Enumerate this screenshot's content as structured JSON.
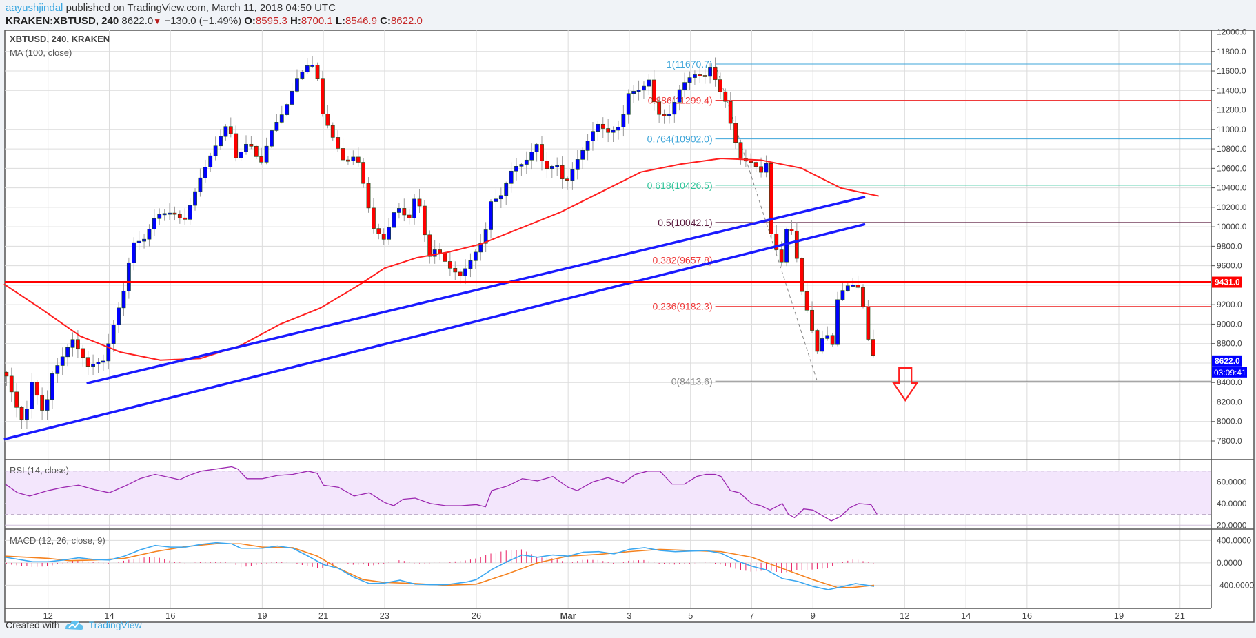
{
  "header": {
    "author": "aayushjindal",
    "published": "published on TradingView.com, March 11, 2018 04:50 UTC",
    "symbol": "KRAKEN:XBTUSD, 240",
    "last": "8622.0",
    "change": "−130.0 (−1.49%)",
    "o_label": "O:",
    "o": "8595.3",
    "h_label": "H:",
    "h": "8700.1",
    "l_label": "L:",
    "l": "8546.9",
    "c_label": "C:",
    "c": "8622.0"
  },
  "legend": {
    "title": "XBTUSD, 240, KRAKEN",
    "ma": "MA (100, close)",
    "rsi": "RSI (14, close)",
    "macd": "MACD (12, 26, close, 9)"
  },
  "footer": {
    "created": "Created with",
    "brand": "TradingView"
  },
  "colors": {
    "up": "#0000ff",
    "down": "#ff0000",
    "ma": "#ff1f1f",
    "trend": "#1a1aff",
    "rsi": "#9c27b0",
    "macd": "#3ba7f0",
    "signal": "#f5821f",
    "hist": "#e91e63"
  },
  "chart_data": {
    "type": "candlestick",
    "x_unit": "days since Feb 12, 2018 00:00 UTC",
    "bar_step_days": 0.16667,
    "price_axis": {
      "ylim": [
        7600,
        12100
      ],
      "ticks": [
        "12000.0",
        "11800.0",
        "11600.0",
        "11400.0",
        "11200.0",
        "11000.0",
        "10800.0",
        "10600.0",
        "10400.0",
        "10200.0",
        "10000.0",
        "9800.0",
        "9600.0",
        "9200.0",
        "9000.0",
        "8800.0",
        "8400.0",
        "8200.0",
        "8000.0",
        "7800.0"
      ]
    },
    "date_ticks": [
      {
        "d": 0,
        "label": "12"
      },
      {
        "d": 2,
        "label": "14"
      },
      {
        "d": 4,
        "label": "16"
      },
      {
        "d": 7,
        "label": "19"
      },
      {
        "d": 9,
        "label": "21"
      },
      {
        "d": 11,
        "label": "23"
      },
      {
        "d": 14,
        "label": "26"
      },
      {
        "d": 17,
        "label": "Mar"
      },
      {
        "d": 19,
        "label": "3"
      },
      {
        "d": 21,
        "label": "5"
      },
      {
        "d": 23,
        "label": "7"
      },
      {
        "d": 25,
        "label": "9"
      },
      {
        "d": 28,
        "label": "12"
      },
      {
        "d": 30,
        "label": "14"
      },
      {
        "d": 32,
        "label": "16"
      },
      {
        "d": 35,
        "label": "19"
      },
      {
        "d": 37,
        "label": "21"
      }
    ],
    "close_path": [
      [
        -1.36,
        8466
      ],
      [
        -1.05,
        8137
      ],
      [
        -0.79,
        7932
      ],
      [
        -0.52,
        8384
      ],
      [
        -0.13,
        8055
      ],
      [
        0.13,
        8507
      ],
      [
        0.79,
        8877
      ],
      [
        1.31,
        8548
      ],
      [
        1.83,
        8589
      ],
      [
        2.09,
        8918
      ],
      [
        2.49,
        9370
      ],
      [
        2.75,
        9863
      ],
      [
        3.14,
        9904
      ],
      [
        3.53,
        10126
      ],
      [
        4.06,
        10110
      ],
      [
        4.45,
        10027
      ],
      [
        4.98,
        10521
      ],
      [
        5.37,
        10808
      ],
      [
        5.89,
        11096
      ],
      [
        6.15,
        10685
      ],
      [
        6.55,
        10849
      ],
      [
        6.94,
        10603
      ],
      [
        7.33,
        11014
      ],
      [
        7.72,
        11219
      ],
      [
        8.12,
        11548
      ],
      [
        8.51,
        11671
      ],
      [
        8.77,
        11630
      ],
      [
        8.9,
        11178
      ],
      [
        9.3,
        10890
      ],
      [
        9.69,
        10644
      ],
      [
        10.08,
        10767
      ],
      [
        10.34,
        10438
      ],
      [
        10.6,
        10027
      ],
      [
        11.0,
        9863
      ],
      [
        11.39,
        10192
      ],
      [
        11.78,
        10027
      ],
      [
        12.05,
        10356
      ],
      [
        12.44,
        9699
      ],
      [
        12.7,
        9822
      ],
      [
        13.09,
        9616
      ],
      [
        13.49,
        9493
      ],
      [
        13.88,
        9657
      ],
      [
        14.27,
        9863
      ],
      [
        14.45,
        10233
      ],
      [
        14.79,
        10315
      ],
      [
        15.19,
        10644
      ],
      [
        15.58,
        10685
      ],
      [
        15.97,
        10849
      ],
      [
        16.23,
        10562
      ],
      [
        16.63,
        10603
      ],
      [
        16.89,
        10397
      ],
      [
        17.28,
        10685
      ],
      [
        17.67,
        10931
      ],
      [
        17.94,
        11096
      ],
      [
        18.33,
        10972
      ],
      [
        18.72,
        11014
      ],
      [
        18.98,
        11342
      ],
      [
        19.38,
        11383
      ],
      [
        19.64,
        11507
      ],
      [
        19.9,
        11178
      ],
      [
        20.29,
        11178
      ],
      [
        20.69,
        11466
      ],
      [
        21.08,
        11548
      ],
      [
        21.47,
        11507
      ],
      [
        21.68,
        11630
      ],
      [
        21.86,
        11425
      ],
      [
        22.13,
        11301
      ],
      [
        22.39,
        10972
      ],
      [
        22.65,
        10726
      ],
      [
        23.04,
        10685
      ],
      [
        23.3,
        10562
      ],
      [
        23.57,
        10685
      ],
      [
        23.64,
        9904
      ],
      [
        23.96,
        9575
      ],
      [
        24.14,
        9945
      ],
      [
        24.35,
        9929
      ],
      [
        24.61,
        9370
      ],
      [
        24.88,
        9082
      ],
      [
        25.14,
        8754
      ],
      [
        25.4,
        8959
      ],
      [
        25.66,
        8795
      ],
      [
        25.79,
        9247
      ],
      [
        26.05,
        9370
      ],
      [
        26.45,
        9370
      ],
      [
        26.66,
        9123
      ],
      [
        26.84,
        8754
      ],
      [
        27.05,
        8622
      ]
    ],
    "ma100": [
      [
        -1.44,
        9411
      ],
      [
        -0.26,
        9165
      ],
      [
        1.05,
        8877
      ],
      [
        2.36,
        8713
      ],
      [
        3.67,
        8630
      ],
      [
        4.98,
        8647
      ],
      [
        6.28,
        8778
      ],
      [
        7.59,
        9000
      ],
      [
        8.9,
        9165
      ],
      [
        10.21,
        9411
      ],
      [
        11.0,
        9575
      ],
      [
        12.05,
        9682
      ],
      [
        13.09,
        9740
      ],
      [
        14.14,
        9822
      ],
      [
        15.45,
        9986
      ],
      [
        16.76,
        10151
      ],
      [
        18.07,
        10356
      ],
      [
        19.38,
        10562
      ],
      [
        20.69,
        10644
      ],
      [
        22.0,
        10701
      ],
      [
        23.3,
        10685
      ],
      [
        24.61,
        10603
      ],
      [
        25.92,
        10397
      ],
      [
        27.15,
        10315
      ]
    ],
    "trendlines": [
      {
        "from": [
          1.26,
          8392
        ],
        "to": [
          26.71,
          10307
        ]
      },
      {
        "from": [
          -1.44,
          7817
        ],
        "to": [
          26.71,
          10027
        ]
      }
    ],
    "horizontal_level": {
      "price": 9431.0,
      "label": "9431.0"
    },
    "last_price": {
      "label": "8622.0",
      "price": 8622.0,
      "countdown": "03:09:41"
    },
    "fib": {
      "start_d": 21.81,
      "swing": {
        "from": [
          21.81,
          11670.7
        ],
        "to": [
          25.14,
          8413.6
        ]
      },
      "levels": [
        {
          "label": "1(11670.7)",
          "price": 11670.7,
          "color": "#3da5d9"
        },
        {
          "label": "0.886(11299.4)",
          "price": 11299.4,
          "color": "#ef3b3b"
        },
        {
          "label": "0.764(10902.0)",
          "price": 10902.0,
          "color": "#3da5d9"
        },
        {
          "label": "0.618(10426.5)",
          "price": 10426.5,
          "color": "#2fc59a"
        },
        {
          "label": "0.5(10042.1)",
          "price": 10042.1,
          "color": "#5a1a3e"
        },
        {
          "label": "0.382(9657.8)",
          "price": 9657.8,
          "color": "#ef3b3b"
        },
        {
          "label": "0.236(9182.3)",
          "price": 9182.3,
          "color": "#ef3b3b"
        },
        {
          "label": "0(8413.6)",
          "price": 8413.6,
          "color": "#888888"
        }
      ]
    },
    "arrow": {
      "d": 28.02,
      "direction": "down"
    },
    "rsi": {
      "ticks": [
        "60.0000",
        "40.0000",
        "20.0000"
      ],
      "tick_values": [
        60,
        40,
        20
      ],
      "bands": [
        30,
        70
      ],
      "path": [
        [
          -1.4,
          58
        ],
        [
          -1.0,
          50
        ],
        [
          -0.6,
          47
        ],
        [
          0,
          52
        ],
        [
          0.5,
          55
        ],
        [
          1.0,
          57
        ],
        [
          1.5,
          53
        ],
        [
          2.0,
          50
        ],
        [
          2.5,
          56
        ],
        [
          3.0,
          63
        ],
        [
          3.5,
          67
        ],
        [
          4.0,
          64
        ],
        [
          4.3,
          62
        ],
        [
          4.6,
          66
        ],
        [
          5.0,
          70
        ],
        [
          5.5,
          72
        ],
        [
          6.0,
          74
        ],
        [
          6.2,
          72
        ],
        [
          6.5,
          63
        ],
        [
          7.0,
          63
        ],
        [
          7.5,
          66
        ],
        [
          8.0,
          67
        ],
        [
          8.5,
          70
        ],
        [
          8.8,
          68
        ],
        [
          9.0,
          57
        ],
        [
          9.5,
          55
        ],
        [
          10.0,
          47
        ],
        [
          10.5,
          50
        ],
        [
          11.0,
          41
        ],
        [
          11.3,
          38
        ],
        [
          11.6,
          44
        ],
        [
          12.0,
          45
        ],
        [
          12.5,
          40
        ],
        [
          13.0,
          38
        ],
        [
          13.5,
          38
        ],
        [
          14.0,
          39
        ],
        [
          14.3,
          37
        ],
        [
          14.5,
          52
        ],
        [
          15.0,
          56
        ],
        [
          15.5,
          63
        ],
        [
          16.0,
          61
        ],
        [
          16.5,
          65
        ],
        [
          17.0,
          55
        ],
        [
          17.3,
          52
        ],
        [
          17.8,
          60
        ],
        [
          18.3,
          64
        ],
        [
          18.8,
          59
        ],
        [
          19.2,
          67
        ],
        [
          19.6,
          70
        ],
        [
          20.0,
          70
        ],
        [
          20.4,
          58
        ],
        [
          20.8,
          58
        ],
        [
          21.2,
          65
        ],
        [
          21.5,
          67
        ],
        [
          21.8,
          67
        ],
        [
          22.0,
          65
        ],
        [
          22.3,
          52
        ],
        [
          22.6,
          50
        ],
        [
          23.0,
          40
        ],
        [
          23.3,
          38
        ],
        [
          23.6,
          34
        ],
        [
          24.0,
          40
        ],
        [
          24.2,
          30
        ],
        [
          24.4,
          27
        ],
        [
          24.7,
          35
        ],
        [
          25.0,
          34
        ],
        [
          25.3,
          29
        ],
        [
          25.6,
          24
        ],
        [
          25.9,
          28
        ],
        [
          26.2,
          36
        ],
        [
          26.5,
          40
        ],
        [
          26.9,
          39
        ],
        [
          27.1,
          30
        ]
      ]
    },
    "macd": {
      "ticks": [
        "400.0000",
        "0.0000",
        "-400.0000"
      ],
      "tick_values": [
        400,
        0,
        -400
      ],
      "macd": [
        [
          -1.4,
          100
        ],
        [
          -0.5,
          20
        ],
        [
          0,
          20
        ],
        [
          0.5,
          50
        ],
        [
          1.0,
          90
        ],
        [
          1.5,
          60
        ],
        [
          2.0,
          50
        ],
        [
          2.5,
          120
        ],
        [
          3.0,
          230
        ],
        [
          3.5,
          310
        ],
        [
          4.0,
          280
        ],
        [
          4.5,
          280
        ],
        [
          5.0,
          330
        ],
        [
          5.5,
          360
        ],
        [
          6.0,
          340
        ],
        [
          6.3,
          260
        ],
        [
          7.0,
          260
        ],
        [
          7.5,
          300
        ],
        [
          8.0,
          260
        ],
        [
          8.5,
          120
        ],
        [
          9.0,
          -30
        ],
        [
          9.5,
          -100
        ],
        [
          10.0,
          -260
        ],
        [
          10.5,
          -370
        ],
        [
          11.0,
          -360
        ],
        [
          11.5,
          -310
        ],
        [
          12.0,
          -380
        ],
        [
          12.5,
          -390
        ],
        [
          13.0,
          -390
        ],
        [
          13.7,
          -340
        ],
        [
          14.0,
          -300
        ],
        [
          14.5,
          -120
        ],
        [
          15.0,
          20
        ],
        [
          15.5,
          140
        ],
        [
          16.0,
          100
        ],
        [
          16.5,
          140
        ],
        [
          17.0,
          120
        ],
        [
          17.5,
          190
        ],
        [
          18.0,
          200
        ],
        [
          18.5,
          160
        ],
        [
          19.0,
          240
        ],
        [
          19.5,
          270
        ],
        [
          20.0,
          220
        ],
        [
          20.5,
          200
        ],
        [
          21.0,
          210
        ],
        [
          21.5,
          220
        ],
        [
          22.0,
          170
        ],
        [
          22.5,
          40
        ],
        [
          23.0,
          -60
        ],
        [
          23.5,
          -130
        ],
        [
          24.0,
          -280
        ],
        [
          24.5,
          -330
        ],
        [
          25.0,
          -420
        ],
        [
          25.5,
          -480
        ],
        [
          26.0,
          -420
        ],
        [
          26.4,
          -370
        ],
        [
          27.0,
          -420
        ]
      ],
      "signal": [
        [
          -1.4,
          120
        ],
        [
          0,
          80
        ],
        [
          0.7,
          40
        ],
        [
          1.5,
          50
        ],
        [
          2.5,
          80
        ],
        [
          3.5,
          200
        ],
        [
          4.5,
          290
        ],
        [
          5.5,
          340
        ],
        [
          6.3,
          340
        ],
        [
          7.0,
          280
        ],
        [
          8.0,
          270
        ],
        [
          8.8,
          120
        ],
        [
          9.5,
          -100
        ],
        [
          10.3,
          -300
        ],
        [
          11.0,
          -350
        ],
        [
          12.0,
          -370
        ],
        [
          13.0,
          -400
        ],
        [
          14.0,
          -380
        ],
        [
          15.0,
          -200
        ],
        [
          16.0,
          0
        ],
        [
          17.0,
          120
        ],
        [
          18.0,
          150
        ],
        [
          19.0,
          200
        ],
        [
          20.0,
          240
        ],
        [
          21.0,
          220
        ],
        [
          22.0,
          200
        ],
        [
          23.0,
          100
        ],
        [
          24.0,
          -100
        ],
        [
          25.0,
          -300
        ],
        [
          25.8,
          -440
        ],
        [
          26.3,
          -440
        ],
        [
          27.0,
          -400
        ]
      ]
    }
  }
}
